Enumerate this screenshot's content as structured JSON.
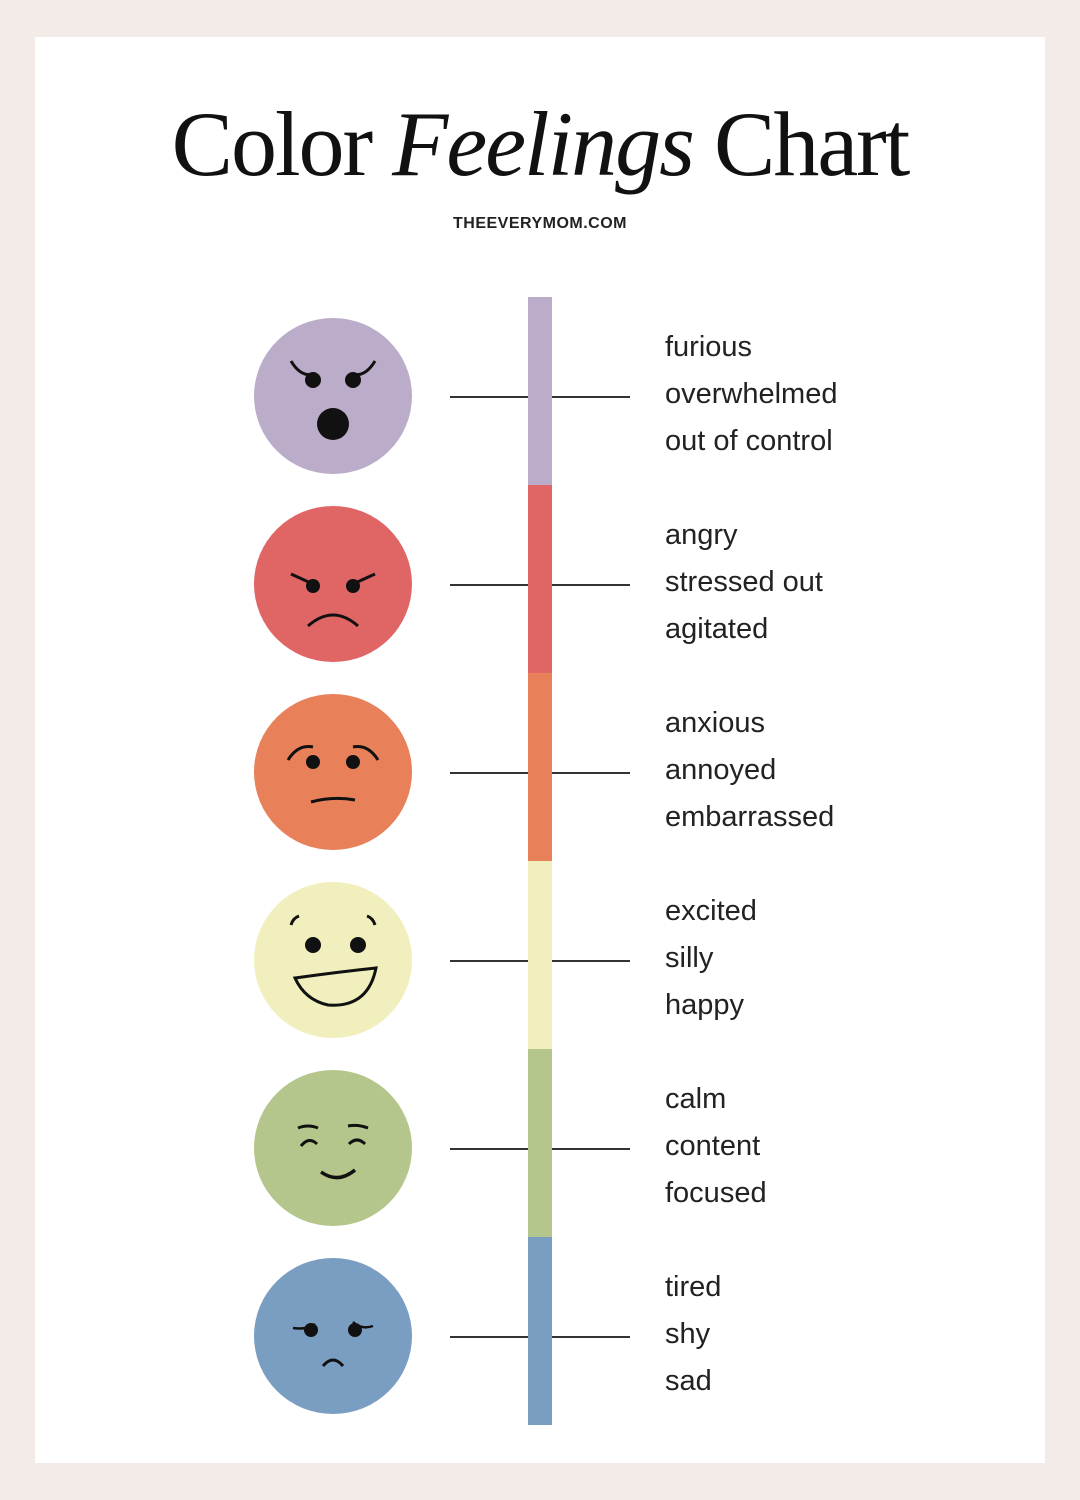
{
  "title": {
    "part1": "Color",
    "part2": "Feelings",
    "part3": "Chart"
  },
  "subtitle": "THEEVERYMOM.COM",
  "levels": [
    {
      "color": "#bbadc9",
      "face": "furious-face-icon",
      "feelings": [
        "furious",
        "overwhelmed",
        "out of control"
      ]
    },
    {
      "color": "#e06565",
      "face": "angry-face-icon",
      "feelings": [
        "angry",
        "stressed out",
        "agitated"
      ]
    },
    {
      "color": "#e8805a",
      "face": "worried-face-icon",
      "feelings": [
        "anxious",
        "annoyed",
        "embarrassed"
      ]
    },
    {
      "color": "#f0efbd",
      "face": "grinning-face-icon",
      "feelings": [
        "excited",
        "silly",
        "happy"
      ]
    },
    {
      "color": "#b4c68b",
      "face": "content-face-icon",
      "feelings": [
        "calm",
        "content",
        "focused"
      ]
    },
    {
      "color": "#7a9ec2",
      "face": "sad-face-icon",
      "feelings": [
        "tired",
        "shy",
        "sad"
      ]
    }
  ]
}
